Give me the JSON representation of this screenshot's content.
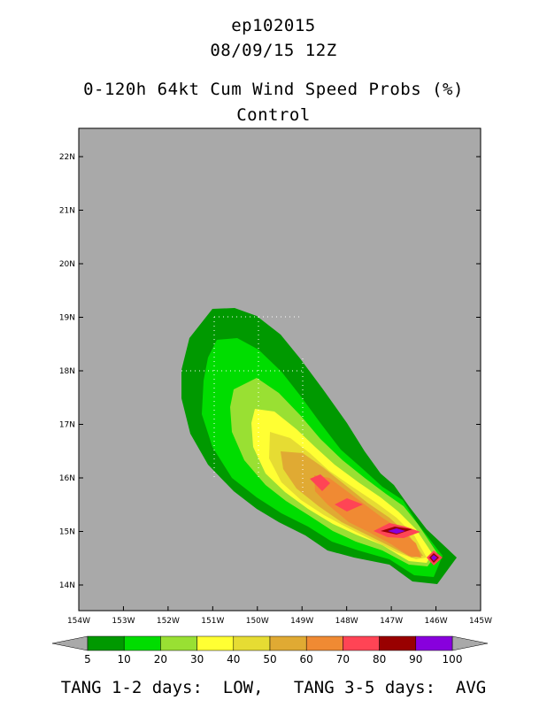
{
  "header": {
    "storm_id": "ep102015",
    "datetime": "08/09/15 12Z",
    "product": "0-120h 64kt Cum Wind Speed Probs (%)",
    "run": "Control"
  },
  "map": {
    "background": "#a9a9a9",
    "x_ticks": [
      "154W",
      "153W",
      "152W",
      "151W",
      "150W",
      "149W",
      "148W",
      "147W",
      "146W",
      "145W"
    ],
    "y_ticks": [
      "14N",
      "15N",
      "16N",
      "17N",
      "18N",
      "19N",
      "20N",
      "21N",
      "22N"
    ],
    "lon_range": [
      -154,
      -145
    ],
    "lat_range": [
      13.5,
      22.5
    ]
  },
  "colorbar": {
    "levels": [
      "5",
      "10",
      "20",
      "30",
      "40",
      "50",
      "60",
      "70",
      "80",
      "90",
      "100"
    ],
    "colors": [
      "#009900",
      "#00dd00",
      "#99e033",
      "#ffff33",
      "#e6dc33",
      "#e0aa33",
      "#f08a33",
      "#ff4455",
      "#990000",
      "#8800dd"
    ]
  },
  "footer": {
    "text": "TANG 1-2 days:  LOW,   TANG 3-5 days:  AVG"
  }
}
